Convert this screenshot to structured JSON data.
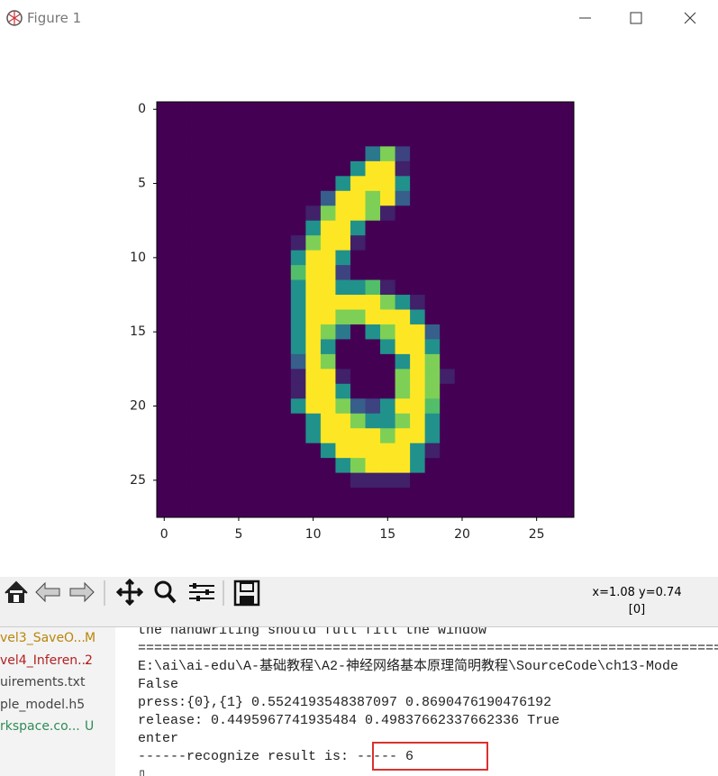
{
  "window": {
    "title": "Figure 1",
    "coords": "x=1.08 y=0.74",
    "pixel_value": "[0]"
  },
  "chart_data": {
    "type": "heatmap",
    "colormap": "viridis",
    "zlim": [
      0,
      1
    ],
    "xlim": [
      -0.5,
      27.5
    ],
    "ylim": [
      27.5,
      -0.5
    ],
    "xticks": [
      0,
      5,
      10,
      15,
      20,
      25
    ],
    "yticks": [
      0,
      5,
      10,
      15,
      20,
      25
    ],
    "values": [
      [
        0,
        0,
        0,
        0,
        0,
        0,
        0,
        0,
        0,
        0,
        0,
        0,
        0,
        0,
        0,
        0,
        0,
        0,
        0,
        0,
        0,
        0,
        0,
        0,
        0,
        0,
        0,
        0
      ],
      [
        0,
        0,
        0,
        0,
        0,
        0,
        0,
        0,
        0,
        0,
        0,
        0,
        0,
        0,
        0,
        0,
        0,
        0,
        0,
        0,
        0,
        0,
        0,
        0,
        0,
        0,
        0,
        0
      ],
      [
        0,
        0,
        0,
        0,
        0,
        0,
        0,
        0,
        0,
        0,
        0,
        0,
        0,
        0,
        0,
        0,
        0,
        0,
        0,
        0,
        0,
        0,
        0,
        0,
        0,
        0,
        0,
        0
      ],
      [
        0,
        0,
        0,
        0,
        0,
        0,
        0,
        0,
        0,
        0,
        0,
        0,
        0,
        0,
        0.4,
        0.8,
        0.2,
        0,
        0,
        0,
        0,
        0,
        0,
        0,
        0,
        0,
        0,
        0
      ],
      [
        0,
        0,
        0,
        0,
        0,
        0,
        0,
        0,
        0,
        0,
        0,
        0,
        0,
        0.5,
        1,
        1,
        0.1,
        0,
        0,
        0,
        0,
        0,
        0,
        0,
        0,
        0,
        0,
        0
      ],
      [
        0,
        0,
        0,
        0,
        0,
        0,
        0,
        0,
        0,
        0,
        0,
        0,
        0.5,
        1,
        1,
        1,
        0.5,
        0,
        0,
        0,
        0,
        0,
        0,
        0,
        0,
        0,
        0,
        0
      ],
      [
        0,
        0,
        0,
        0,
        0,
        0,
        0,
        0,
        0,
        0,
        0,
        0.3,
        1,
        1,
        0.8,
        1,
        0.3,
        0,
        0,
        0,
        0,
        0,
        0,
        0,
        0,
        0,
        0,
        0
      ],
      [
        0,
        0,
        0,
        0,
        0,
        0,
        0,
        0,
        0,
        0,
        0.1,
        0.8,
        1,
        1,
        0.8,
        0.1,
        0,
        0,
        0,
        0,
        0,
        0,
        0,
        0,
        0,
        0,
        0,
        0
      ],
      [
        0,
        0,
        0,
        0,
        0,
        0,
        0,
        0,
        0,
        0,
        0.5,
        1,
        1,
        0.5,
        0,
        0,
        0,
        0,
        0,
        0,
        0,
        0,
        0,
        0,
        0,
        0,
        0,
        0
      ],
      [
        0,
        0,
        0,
        0,
        0,
        0,
        0,
        0,
        0,
        0.1,
        0.8,
        1,
        1,
        0.1,
        0,
        0,
        0,
        0,
        0,
        0,
        0,
        0,
        0,
        0,
        0,
        0,
        0,
        0
      ],
      [
        0,
        0,
        0,
        0,
        0,
        0,
        0,
        0,
        0,
        0.5,
        1,
        1,
        0.5,
        0,
        0,
        0,
        0,
        0,
        0,
        0,
        0,
        0,
        0,
        0,
        0,
        0,
        0,
        0
      ],
      [
        0,
        0,
        0,
        0,
        0,
        0,
        0,
        0,
        0,
        0.7,
        1,
        1,
        0.2,
        0,
        0,
        0,
        0,
        0,
        0,
        0,
        0,
        0,
        0,
        0,
        0,
        0,
        0,
        0
      ],
      [
        0,
        0,
        0,
        0,
        0,
        0,
        0,
        0,
        0,
        0.5,
        1,
        1,
        0.5,
        0.5,
        0.7,
        0.1,
        0,
        0,
        0,
        0,
        0,
        0,
        0,
        0,
        0,
        0,
        0,
        0
      ],
      [
        0,
        0,
        0,
        0,
        0,
        0,
        0,
        0,
        0,
        0.5,
        1,
        1,
        1,
        1,
        1,
        0.8,
        0.5,
        0.1,
        0,
        0,
        0,
        0,
        0,
        0,
        0,
        0,
        0,
        0
      ],
      [
        0,
        0,
        0,
        0,
        0,
        0,
        0,
        0,
        0,
        0.5,
        1,
        1,
        0.8,
        0.8,
        1,
        1,
        1,
        0.5,
        0,
        0,
        0,
        0,
        0,
        0,
        0,
        0,
        0,
        0
      ],
      [
        0,
        0,
        0,
        0,
        0,
        0,
        0,
        0,
        0,
        0.5,
        1,
        0.8,
        0.4,
        0,
        0.5,
        0.8,
        1,
        1,
        0.3,
        0,
        0,
        0,
        0,
        0,
        0,
        0,
        0,
        0
      ],
      [
        0,
        0,
        0,
        0,
        0,
        0,
        0,
        0,
        0,
        0.5,
        1,
        0.5,
        0,
        0,
        0,
        0.5,
        1,
        1,
        0.5,
        0,
        0,
        0,
        0,
        0,
        0,
        0,
        0,
        0
      ],
      [
        0,
        0,
        0,
        0,
        0,
        0,
        0,
        0,
        0,
        0.3,
        1,
        0.8,
        0,
        0,
        0,
        0,
        0.5,
        1,
        0.8,
        0,
        0,
        0,
        0,
        0,
        0,
        0,
        0,
        0
      ],
      [
        0,
        0,
        0,
        0,
        0,
        0,
        0,
        0,
        0,
        0.1,
        1,
        1,
        0.1,
        0,
        0,
        0,
        0.8,
        1,
        0.8,
        0.1,
        0,
        0,
        0,
        0,
        0,
        0,
        0,
        0
      ],
      [
        0,
        0,
        0,
        0,
        0,
        0,
        0,
        0,
        0,
        0.1,
        1,
        1,
        0.5,
        0,
        0,
        0,
        0.8,
        1,
        0.8,
        0,
        0,
        0,
        0,
        0,
        0,
        0,
        0,
        0
      ],
      [
        0,
        0,
        0,
        0,
        0,
        0,
        0,
        0,
        0,
        0.5,
        1,
        1,
        0.8,
        0.3,
        0.2,
        0.5,
        1,
        1,
        0.7,
        0,
        0,
        0,
        0,
        0,
        0,
        0,
        0,
        0
      ],
      [
        0,
        0,
        0,
        0,
        0,
        0,
        0,
        0,
        0,
        0,
        0.5,
        1,
        1,
        0.8,
        0.5,
        0.5,
        0.8,
        1,
        0.5,
        0,
        0,
        0,
        0,
        0,
        0,
        0,
        0,
        0
      ],
      [
        0,
        0,
        0,
        0,
        0,
        0,
        0,
        0,
        0,
        0,
        0.5,
        1,
        1,
        1,
        1,
        0.8,
        1,
        1,
        0.5,
        0,
        0,
        0,
        0,
        0,
        0,
        0,
        0,
        0
      ],
      [
        0,
        0,
        0,
        0,
        0,
        0,
        0,
        0,
        0,
        0,
        0,
        0.5,
        1,
        1,
        1,
        1,
        1,
        0.5,
        0.1,
        0,
        0,
        0,
        0,
        0,
        0,
        0,
        0,
        0
      ],
      [
        0,
        0,
        0,
        0,
        0,
        0,
        0,
        0,
        0,
        0,
        0,
        0,
        0.5,
        0.8,
        1,
        1,
        1,
        0.5,
        0,
        0,
        0,
        0,
        0,
        0,
        0,
        0,
        0,
        0
      ],
      [
        0,
        0,
        0,
        0,
        0,
        0,
        0,
        0,
        0,
        0,
        0,
        0,
        0,
        0.1,
        0.1,
        0.1,
        0.1,
        0,
        0,
        0,
        0,
        0,
        0,
        0,
        0,
        0,
        0,
        0
      ],
      [
        0,
        0,
        0,
        0,
        0,
        0,
        0,
        0,
        0,
        0,
        0,
        0,
        0,
        0,
        0,
        0,
        0,
        0,
        0,
        0,
        0,
        0,
        0,
        0,
        0,
        0,
        0,
        0
      ],
      [
        0,
        0,
        0,
        0,
        0,
        0,
        0,
        0,
        0,
        0,
        0,
        0,
        0,
        0,
        0,
        0,
        0,
        0,
        0,
        0,
        0,
        0,
        0,
        0,
        0,
        0,
        0,
        0
      ]
    ]
  },
  "sidebar": {
    "files": [
      {
        "name": "vel3_SaveO...",
        "badge": "M",
        "color": "#b8860b"
      },
      {
        "name": "vel4_Inferen...",
        "badge": "2",
        "color": "#b22222"
      },
      {
        "name": "uirements.txt",
        "badge": "",
        "color": "#444444"
      },
      {
        "name": "ple_model.h5",
        "badge": "",
        "color": "#444444"
      },
      {
        "name": "rkspace.co...",
        "badge": "U",
        "color": "#2e8b57"
      }
    ]
  },
  "console": {
    "lines": [
      "the handwriting should full fill the window",
      "==========================================================================",
      "E:\\ai\\ai-edu\\A-基础教程\\A2-神经网络基本原理简明教程\\SourceCode\\ch13-Mode",
      "False",
      "press:{0},{1} 0.5524193548387097 0.8690476190476192",
      "release: 0.4495967741935484 0.49837662337662336 True",
      "enter",
      "------recognize result is: ----- 6",
      "▯"
    ]
  }
}
